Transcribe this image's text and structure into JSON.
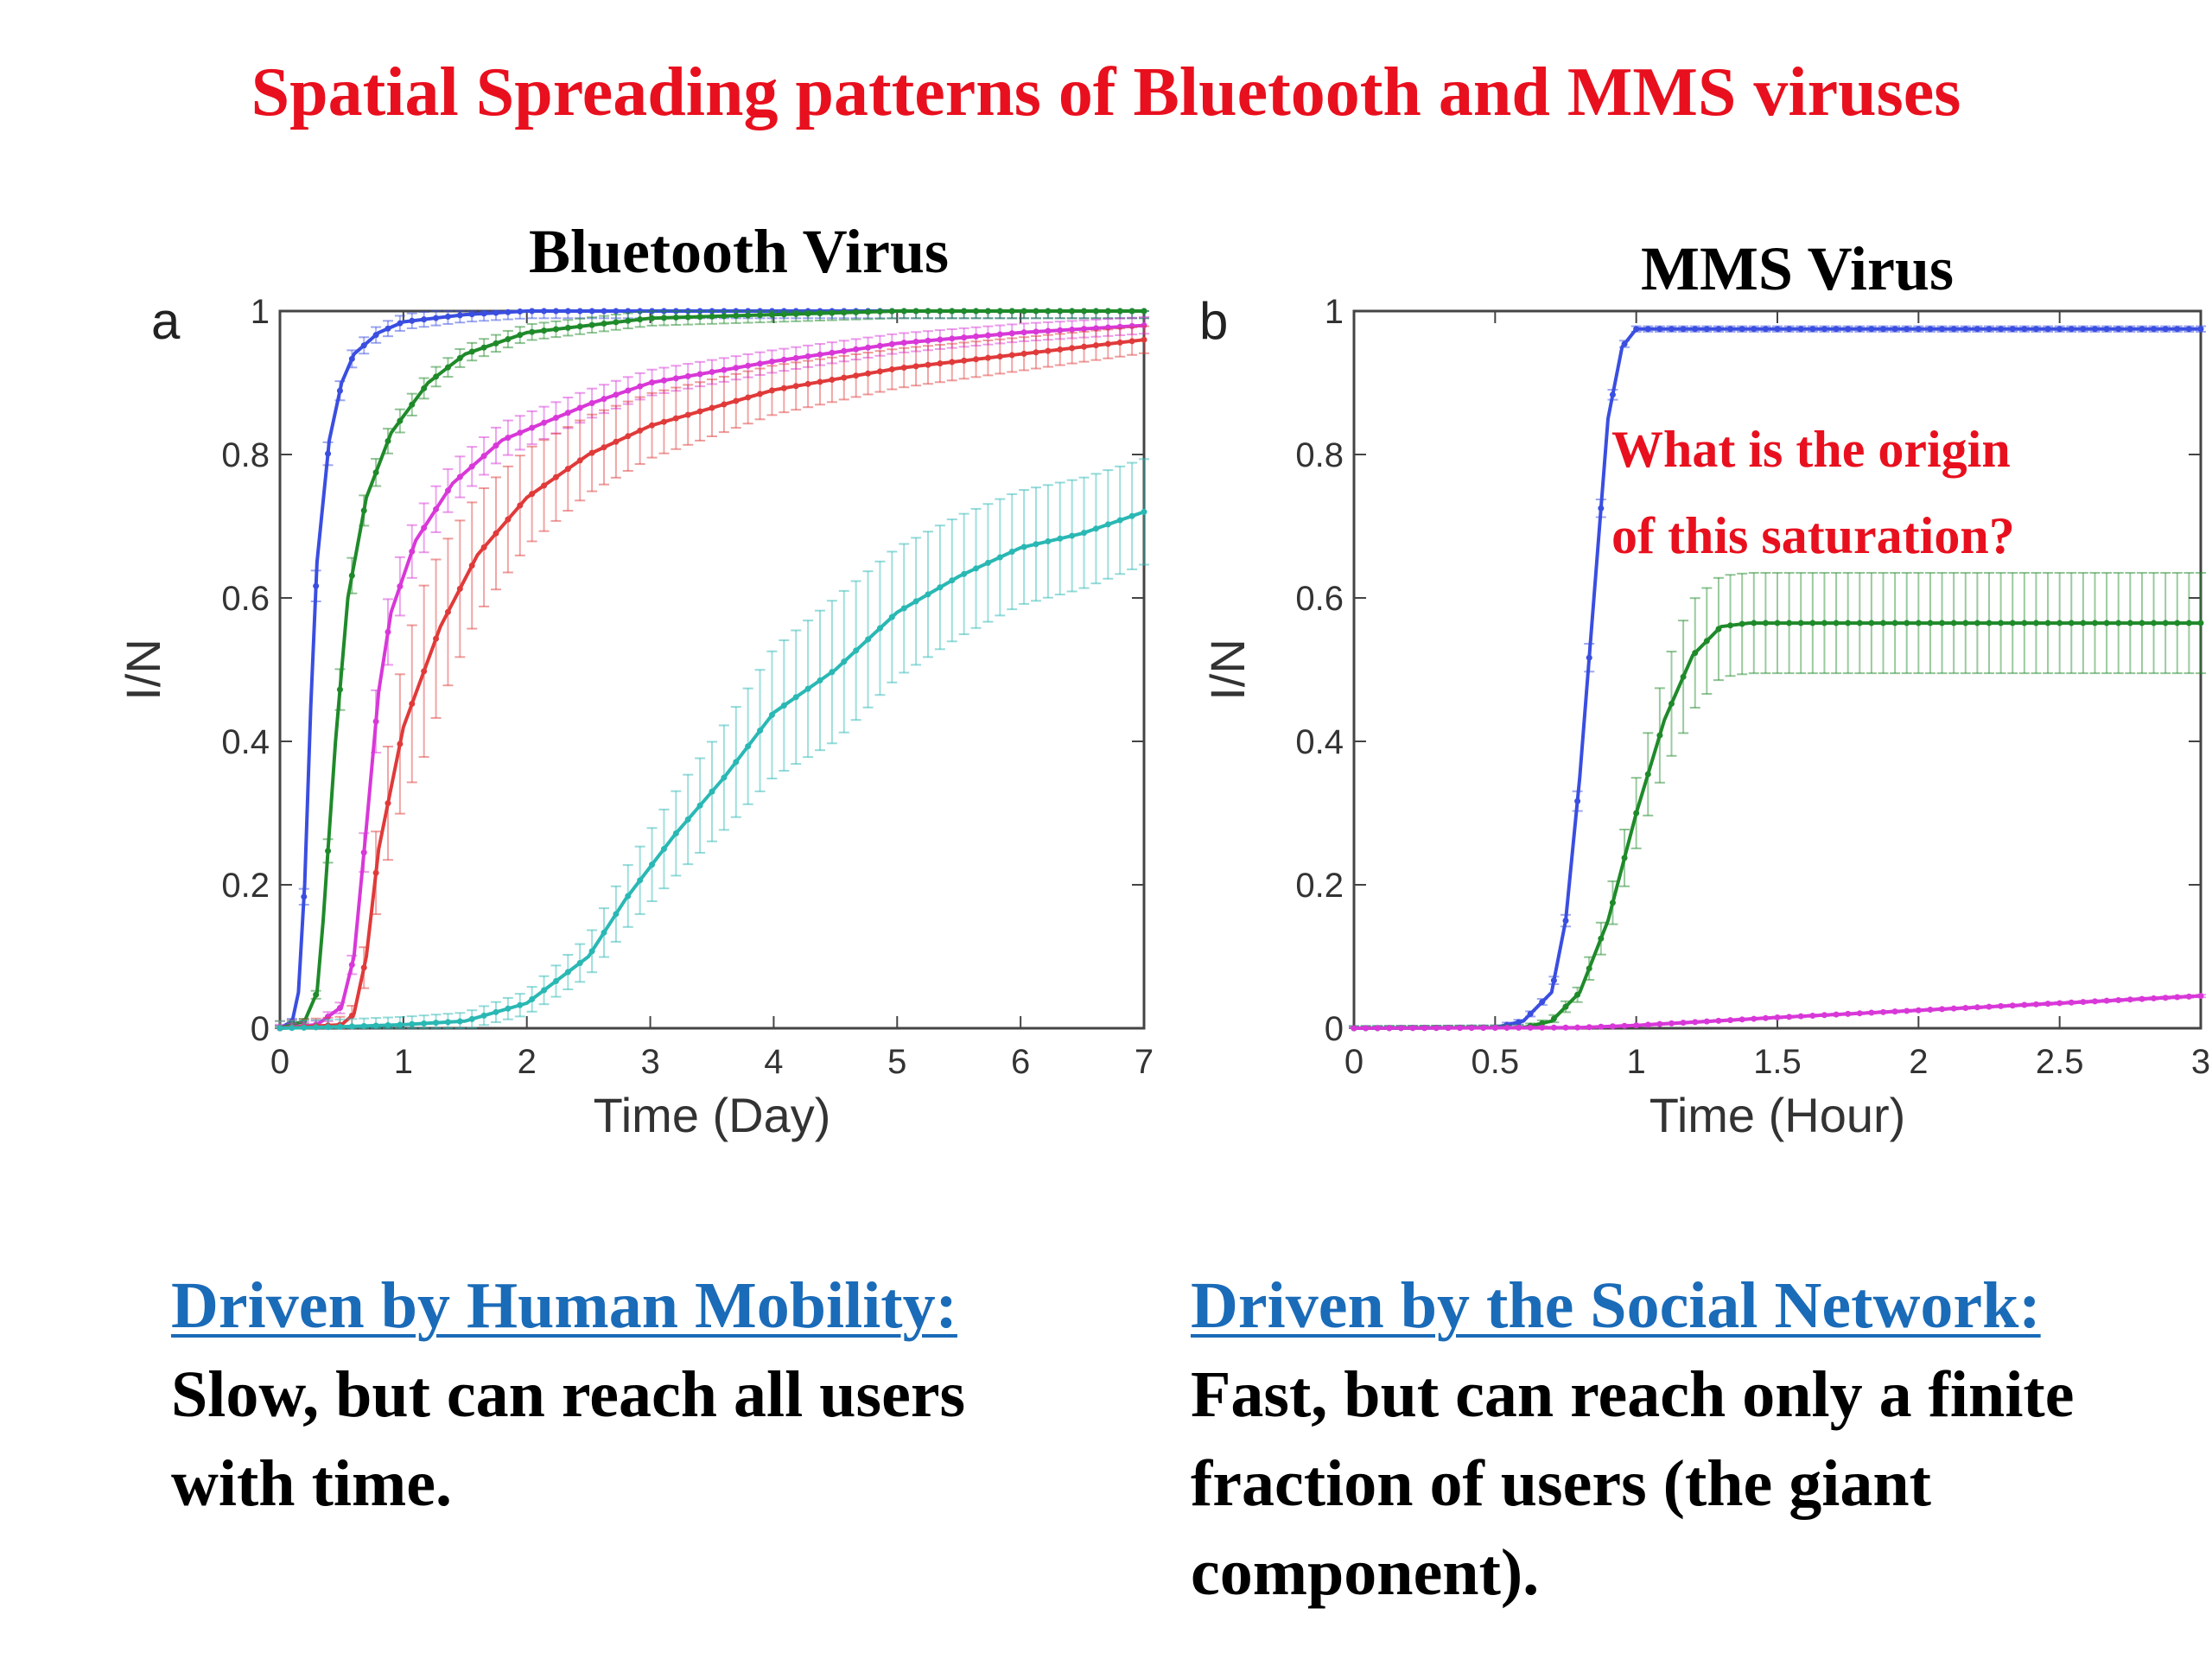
{
  "title": "Spatial Spreading patterns of Bluetooth and MMS viruses",
  "chart_data": [
    {
      "type": "line",
      "panel": "a",
      "title": "Bluetooth Virus",
      "xlabel": "Time (Day)",
      "ylabel": "I/N",
      "xlim": [
        0,
        7
      ],
      "ylim": [
        0,
        1
      ],
      "xticks": [
        "0",
        "1",
        "2",
        "3",
        "4",
        "5",
        "6",
        "7"
      ],
      "yticks": [
        "0",
        "0.2",
        "0.4",
        "0.6",
        "0.8",
        "1"
      ],
      "series": [
        {
          "color": "#3a4ee0",
          "error": [
            0.003,
            0.025,
            0.01
          ],
          "points": [
            [
              0,
              0
            ],
            [
              0.1,
              0.01
            ],
            [
              0.15,
              0.05
            ],
            [
              0.2,
              0.2
            ],
            [
              0.25,
              0.45
            ],
            [
              0.3,
              0.65
            ],
            [
              0.4,
              0.82
            ],
            [
              0.5,
              0.9
            ],
            [
              0.6,
              0.94
            ],
            [
              0.8,
              0.97
            ],
            [
              1.0,
              0.985
            ],
            [
              1.5,
              0.995
            ],
            [
              2,
              1.0
            ],
            [
              3,
              1.0
            ],
            [
              4,
              1.0
            ],
            [
              5,
              1.0
            ],
            [
              6,
              1.0
            ],
            [
              7,
              1.0
            ]
          ]
        },
        {
          "color": "#1f8a2a",
          "error": [
            0.003,
            0.03,
            0.01
          ],
          "points": [
            [
              0,
              0
            ],
            [
              0.2,
              0.01
            ],
            [
              0.3,
              0.05
            ],
            [
              0.35,
              0.15
            ],
            [
              0.45,
              0.4
            ],
            [
              0.55,
              0.6
            ],
            [
              0.7,
              0.74
            ],
            [
              0.9,
              0.83
            ],
            [
              1.2,
              0.9
            ],
            [
              1.5,
              0.94
            ],
            [
              2,
              0.97
            ],
            [
              3,
              0.99
            ],
            [
              4,
              0.995
            ],
            [
              5,
              1.0
            ],
            [
              6,
              1.0
            ],
            [
              7,
              1.0
            ]
          ]
        },
        {
          "color": "#d838d8",
          "error": [
            0.005,
            0.05,
            0.01
          ],
          "points": [
            [
              0,
              0
            ],
            [
              0.3,
              0.005
            ],
            [
              0.5,
              0.03
            ],
            [
              0.6,
              0.1
            ],
            [
              0.7,
              0.28
            ],
            [
              0.8,
              0.47
            ],
            [
              0.9,
              0.58
            ],
            [
              1.1,
              0.68
            ],
            [
              1.4,
              0.76
            ],
            [
              1.8,
              0.82
            ],
            [
              2.5,
              0.87
            ],
            [
              3,
              0.9
            ],
            [
              4,
              0.93
            ],
            [
              5,
              0.955
            ],
            [
              6,
              0.97
            ],
            [
              7,
              0.98
            ]
          ]
        },
        {
          "color": "#e03a3a",
          "error": [
            0.01,
            0.12,
            0.01
          ],
          "points": [
            [
              0,
              0
            ],
            [
              0.5,
              0.005
            ],
            [
              0.6,
              0.02
            ],
            [
              0.7,
              0.1
            ],
            [
              0.8,
              0.25
            ],
            [
              1.0,
              0.42
            ],
            [
              1.3,
              0.56
            ],
            [
              1.6,
              0.66
            ],
            [
              2.0,
              0.74
            ],
            [
              2.5,
              0.8
            ],
            [
              3,
              0.84
            ],
            [
              4,
              0.89
            ],
            [
              5,
              0.92
            ],
            [
              6,
              0.94
            ],
            [
              7,
              0.96
            ]
          ]
        },
        {
          "color": "#2ab8b4",
          "error": [
            0.01,
            0.1,
            0.04
          ],
          "points": [
            [
              0,
              0
            ],
            [
              0.5,
              0.002
            ],
            [
              1.0,
              0.005
            ],
            [
              1.5,
              0.01
            ],
            [
              2.0,
              0.035
            ],
            [
              2.5,
              0.1
            ],
            [
              2.8,
              0.18
            ],
            [
              3.2,
              0.27
            ],
            [
              3.6,
              0.35
            ],
            [
              4,
              0.44
            ],
            [
              4.5,
              0.5
            ],
            [
              5,
              0.58
            ],
            [
              5.5,
              0.63
            ],
            [
              6,
              0.67
            ],
            [
              6.5,
              0.69
            ],
            [
              7,
              0.72
            ]
          ]
        }
      ]
    },
    {
      "type": "line",
      "panel": "b",
      "title": "MMS Virus",
      "xlabel": "Time (Hour)",
      "ylabel": "I/N",
      "xlim": [
        0,
        3
      ],
      "ylim": [
        0,
        1
      ],
      "xticks": [
        "0",
        "0.5",
        "1",
        "1.5",
        "2",
        "2.5",
        "3"
      ],
      "yticks": [
        "0",
        "0.2",
        "0.4",
        "0.6",
        "0.8",
        "1"
      ],
      "annotation": [
        "What is the origin",
        "of this saturation?"
      ],
      "series": [
        {
          "color": "#3a4ee0",
          "error": [
            0.003,
            0.02,
            0.003
          ],
          "points": [
            [
              0,
              0
            ],
            [
              0.5,
              0.001
            ],
            [
              0.6,
              0.01
            ],
            [
              0.7,
              0.05
            ],
            [
              0.75,
              0.15
            ],
            [
              0.8,
              0.35
            ],
            [
              0.85,
              0.6
            ],
            [
              0.9,
              0.85
            ],
            [
              0.95,
              0.95
            ],
            [
              1.0,
              0.975
            ],
            [
              1.1,
              0.975
            ],
            [
              1.5,
              0.975
            ],
            [
              2,
              0.975
            ],
            [
              2.5,
              0.975
            ],
            [
              3,
              0.975
            ]
          ]
        },
        {
          "color": "#1f8a2a",
          "error": [
            0.003,
            0.08,
            0.003
          ],
          "points": [
            [
              0,
              0
            ],
            [
              0.6,
              0.001
            ],
            [
              0.7,
              0.01
            ],
            [
              0.8,
              0.05
            ],
            [
              0.9,
              0.15
            ],
            [
              1.0,
              0.3
            ],
            [
              1.1,
              0.43
            ],
            [
              1.2,
              0.52
            ],
            [
              1.3,
              0.56
            ],
            [
              1.4,
              0.565
            ],
            [
              1.6,
              0.565
            ],
            [
              2,
              0.565
            ],
            [
              2.5,
              0.565
            ],
            [
              3,
              0.565
            ]
          ]
        },
        {
          "color": "#d838d8",
          "error": [
            0.001,
            0.01,
            0.012
          ],
          "points": [
            [
              0,
              0
            ],
            [
              0.8,
              0.001
            ],
            [
              1.0,
              0.004
            ],
            [
              1.5,
              0.015
            ],
            [
              2.0,
              0.025
            ],
            [
              2.5,
              0.035
            ],
            [
              3,
              0.045
            ]
          ]
        }
      ]
    }
  ],
  "captions": [
    {
      "head": "Driven by Human Mobility:",
      "body": "Slow, but can reach all users\nwith time."
    },
    {
      "head": "Driven  by the Social Network:",
      "body": "Fast, but can reach only a finite\nfraction of users (the giant\ncomponent)."
    }
  ]
}
